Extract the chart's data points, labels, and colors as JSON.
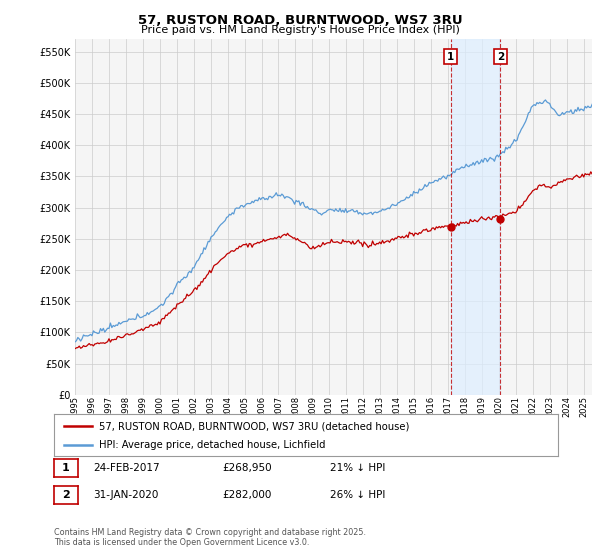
{
  "title": "57, RUSTON ROAD, BURNTWOOD, WS7 3RU",
  "subtitle": "Price paid vs. HM Land Registry's House Price Index (HPI)",
  "ylim": [
    0,
    570000
  ],
  "yticks": [
    0,
    50000,
    100000,
    150000,
    200000,
    250000,
    300000,
    350000,
    400000,
    450000,
    500000,
    550000
  ],
  "ytick_labels": [
    "£0",
    "£50K",
    "£100K",
    "£150K",
    "£200K",
    "£250K",
    "£300K",
    "£350K",
    "£400K",
    "£450K",
    "£500K",
    "£550K"
  ],
  "hpi_color": "#5b9bd5",
  "price_color": "#c00000",
  "transaction1": {
    "date": "24-FEB-2017",
    "price": 268950,
    "hpi_diff": "21% ↓ HPI",
    "x": 2017.15
  },
  "transaction2": {
    "date": "31-JAN-2020",
    "price": 282000,
    "hpi_diff": "26% ↓ HPI",
    "x": 2020.08
  },
  "legend1": "57, RUSTON ROAD, BURNTWOOD, WS7 3RU (detached house)",
  "legend2": "HPI: Average price, detached house, Lichfield",
  "footer": "Contains HM Land Registry data © Crown copyright and database right 2025.\nThis data is licensed under the Open Government Licence v3.0.",
  "background_color": "#ffffff",
  "plot_bg_color": "#f5f5f5",
  "grid_color": "#cccccc",
  "xmin": 1995,
  "xmax": 2025.5,
  "shade_color": "#ddeeff"
}
